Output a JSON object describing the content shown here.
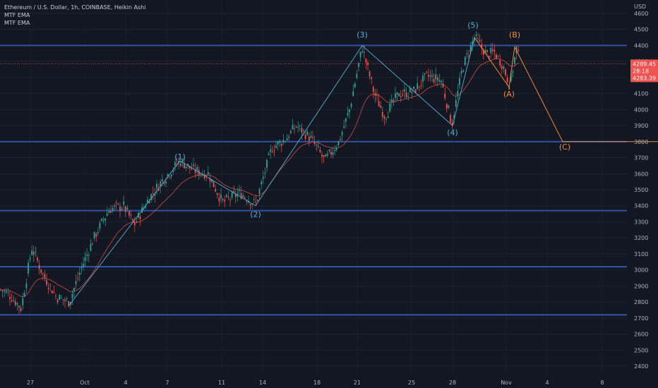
{
  "header": {
    "title": "Ethereum / U.S. Dollar, 1h, COINBASE, Heikin Ashi",
    "indicators": [
      "MTF EMA",
      "MTF EMA"
    ]
  },
  "colors": {
    "background": "#131722",
    "bull": "#26a69a",
    "bear": "#ef5350",
    "support_lines": "#2e4e9e",
    "wave_blue": "#4fb3d9",
    "wave_orange": "#f08a3a",
    "ema": "#d65050"
  },
  "chart_data": {
    "type": "candlestick",
    "y_unit": "USD",
    "ylim": [
      2350,
      4700
    ],
    "y_ticks": [
      2400,
      2500,
      2600,
      2700,
      2800,
      2900,
      3000,
      3100,
      3200,
      3300,
      3400,
      3500,
      3600,
      3700,
      3800,
      3900,
      4000,
      4100,
      4200,
      4300,
      4400,
      4500,
      4600
    ],
    "x_ticks": [
      "27",
      "Oct",
      "4",
      "7",
      "11",
      "14",
      "18",
      "21",
      "25",
      "28",
      "Nov",
      "4",
      "8"
    ],
    "horizontal_levels": [
      4400,
      3800,
      3370,
      3020,
      2720
    ],
    "current_price": {
      "label_top": "4289.45",
      "label_mid": "28:18",
      "label_bottom": "4283.39",
      "value": 4286
    },
    "price_path": [
      [
        0,
        2880
      ],
      [
        15,
        2840
      ],
      [
        30,
        2760
      ],
      [
        45,
        3140
      ],
      [
        60,
        2980
      ],
      [
        80,
        2830
      ],
      [
        98,
        2800
      ],
      [
        115,
        3010
      ],
      [
        135,
        3220
      ],
      [
        155,
        3380
      ],
      [
        175,
        3400
      ],
      [
        190,
        3280
      ],
      [
        210,
        3440
      ],
      [
        230,
        3560
      ],
      [
        255,
        3680
      ],
      [
        275,
        3620
      ],
      [
        295,
        3600
      ],
      [
        315,
        3420
      ],
      [
        340,
        3480
      ],
      [
        362,
        3410
      ],
      [
        385,
        3760
      ],
      [
        405,
        3820
      ],
      [
        420,
        3900
      ],
      [
        440,
        3820
      ],
      [
        460,
        3680
      ],
      [
        480,
        3800
      ],
      [
        495,
        4000
      ],
      [
        513,
        4390
      ],
      [
        530,
        4100
      ],
      [
        545,
        3960
      ],
      [
        565,
        4100
      ],
      [
        585,
        4110
      ],
      [
        605,
        4210
      ],
      [
        625,
        4180
      ],
      [
        640,
        3910
      ],
      [
        655,
        4260
      ],
      [
        672,
        4450
      ],
      [
        690,
        4340
      ],
      [
        700,
        4360
      ],
      [
        712,
        4280
      ],
      [
        722,
        4150
      ],
      [
        732,
        4390
      ],
      [
        736,
        4286
      ]
    ],
    "wave_labels": [
      {
        "label": "(1)",
        "value": 3690,
        "pos": 255,
        "style": "blue"
      },
      {
        "label": "(2)",
        "value": 3330,
        "pos": 362,
        "style": "blue"
      },
      {
        "label": "(3)",
        "value": 4450,
        "pos": 513,
        "style": "blue"
      },
      {
        "label": "(4)",
        "value": 3840,
        "pos": 641,
        "style": "blue"
      },
      {
        "label": "(5)",
        "value": 4510,
        "pos": 670,
        "style": "blue"
      },
      {
        "label": "(B)",
        "value": 4450,
        "pos": 729,
        "style": "orange"
      },
      {
        "label": "(A)",
        "value": 4080,
        "pos": 721,
        "style": "orange"
      },
      {
        "label": "(C)",
        "value": 3750,
        "pos": 800,
        "style": "orange"
      }
    ],
    "impulse_path": [
      [
        98,
        2780
      ],
      [
        255,
        3680
      ],
      [
        362,
        3400
      ],
      [
        513,
        4400
      ],
      [
        641,
        3900
      ],
      [
        672,
        4450
      ]
    ],
    "correction_path": [
      [
        672,
        4450
      ],
      [
        721,
        4140
      ],
      [
        729,
        4390
      ],
      [
        797,
        3800
      ],
      [
        932,
        3800
      ]
    ]
  }
}
